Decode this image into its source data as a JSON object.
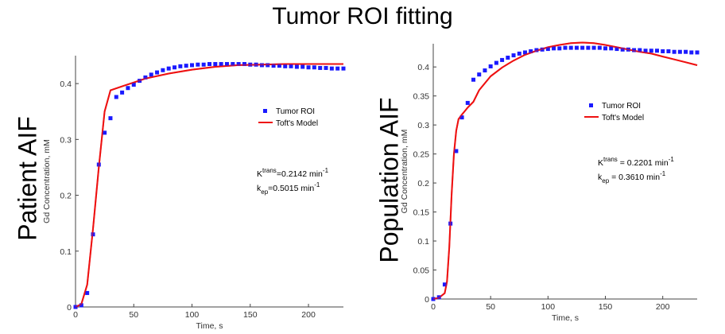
{
  "figure": {
    "title": "Tumor ROI fitting",
    "row_labels": [
      "Patient AIF",
      "Population AIF"
    ]
  },
  "chart_data": [
    {
      "type": "scatter+line",
      "title": "",
      "xlabel": "Time, s",
      "ylabel": "Gd Concentration, mM",
      "xlim": [
        0,
        230
      ],
      "ylim": [
        0,
        0.45
      ],
      "xticks": [
        "0",
        "50",
        "100",
        "150",
        "200"
      ],
      "xtick_values": [
        0,
        50,
        100,
        150,
        200
      ],
      "yticks": [
        "0",
        "0.1",
        "0.2",
        "0.3",
        "0.4"
      ],
      "ytick_values": [
        0,
        0.1,
        0.2,
        0.3,
        0.4
      ],
      "legend": {
        "position": "center-right",
        "entries": [
          "Tumor ROI",
          "Toft's Model"
        ]
      },
      "annotation": {
        "k_label": "K",
        "k_sup": "trans",
        "k_value": "=0.2142 min",
        "k_exp": "-1",
        "kep_label": "k",
        "kep_sub": "ep",
        "kep_value": "=0.5015 min",
        "kep_exp": "-1"
      },
      "series": [
        {
          "name": "Tumor ROI",
          "kind": "marker",
          "color": "#1a1aff",
          "x": [
            0,
            5,
            10,
            15,
            20,
            25,
            30,
            35,
            40,
            45,
            50,
            55,
            60,
            65,
            70,
            75,
            80,
            85,
            90,
            95,
            100,
            105,
            110,
            115,
            120,
            125,
            130,
            135,
            140,
            145,
            150,
            155,
            160,
            165,
            170,
            175,
            180,
            185,
            190,
            195,
            200,
            205,
            210,
            215,
            220,
            225,
            230
          ],
          "y": [
            0,
            0.003,
            0.025,
            0.13,
            0.255,
            0.312,
            0.338,
            0.376,
            0.384,
            0.392,
            0.398,
            0.405,
            0.411,
            0.416,
            0.42,
            0.424,
            0.427,
            0.429,
            0.431,
            0.432,
            0.433,
            0.434,
            0.434,
            0.435,
            0.435,
            0.435,
            0.435,
            0.435,
            0.435,
            0.435,
            0.434,
            0.434,
            0.433,
            0.433,
            0.432,
            0.432,
            0.431,
            0.431,
            0.43,
            0.43,
            0.429,
            0.429,
            0.428,
            0.428,
            0.427,
            0.427,
            0.427
          ]
        },
        {
          "name": "Toft's Model",
          "kind": "line",
          "color": "#ee1111",
          "x": [
            0,
            5,
            10,
            15,
            20,
            25,
            30,
            40,
            50,
            60,
            80,
            100,
            120,
            140,
            160,
            180,
            200,
            220,
            230
          ],
          "y": [
            0,
            0.005,
            0.04,
            0.14,
            0.25,
            0.35,
            0.388,
            0.395,
            0.402,
            0.409,
            0.418,
            0.425,
            0.43,
            0.433,
            0.434,
            0.435,
            0.435,
            0.435,
            0.435
          ]
        }
      ]
    },
    {
      "type": "scatter+line",
      "title": "",
      "xlabel": "Time, s",
      "ylabel": "Gd Concentration, mM",
      "xlim": [
        0,
        230
      ],
      "ylim": [
        0,
        0.44
      ],
      "xticks": [
        "0",
        "50",
        "100",
        "150",
        "200"
      ],
      "xtick_values": [
        0,
        50,
        100,
        150,
        200
      ],
      "yticks": [
        "0",
        "0.05",
        "0.1",
        "0.15",
        "0.2",
        "0.25",
        "0.3",
        "0.35",
        "0.4"
      ],
      "ytick_values": [
        0,
        0.05,
        0.1,
        0.15,
        0.2,
        0.25,
        0.3,
        0.35,
        0.4
      ],
      "legend": {
        "position": "center-right",
        "entries": [
          "Tumor ROI",
          "Toft's Model"
        ]
      },
      "annotation": {
        "k_label": "K",
        "k_sup": "trans",
        "k_value": " = 0.2201 min",
        "k_exp": "-1",
        "kep_label": "k",
        "kep_sub": "ep",
        "kep_value": " = 0.3610 min",
        "kep_exp": "-1"
      },
      "series": [
        {
          "name": "Tumor ROI",
          "kind": "marker",
          "color": "#1a1aff",
          "x": [
            0,
            5,
            10,
            15,
            20,
            25,
            30,
            35,
            40,
            45,
            50,
            55,
            60,
            65,
            70,
            75,
            80,
            85,
            90,
            95,
            100,
            105,
            110,
            115,
            120,
            125,
            130,
            135,
            140,
            145,
            150,
            155,
            160,
            165,
            170,
            175,
            180,
            185,
            190,
            195,
            200,
            205,
            210,
            215,
            220,
            225,
            230
          ],
          "y": [
            0,
            0.003,
            0.025,
            0.13,
            0.255,
            0.313,
            0.338,
            0.378,
            0.387,
            0.394,
            0.401,
            0.407,
            0.412,
            0.416,
            0.42,
            0.423,
            0.425,
            0.427,
            0.429,
            0.43,
            0.431,
            0.432,
            0.432,
            0.433,
            0.433,
            0.433,
            0.433,
            0.433,
            0.433,
            0.433,
            0.432,
            0.432,
            0.431,
            0.43,
            0.43,
            0.429,
            0.429,
            0.428,
            0.428,
            0.428,
            0.427,
            0.427,
            0.426,
            0.426,
            0.426,
            0.425,
            0.425
          ]
        },
        {
          "name": "Toft's Model",
          "kind": "line",
          "color": "#ee1111",
          "x": [
            0,
            5,
            10,
            12,
            14,
            16,
            18,
            20,
            22,
            25,
            28,
            30,
            35,
            40,
            50,
            60,
            70,
            80,
            90,
            100,
            110,
            120,
            130,
            140,
            150,
            160,
            170,
            180,
            190,
            200,
            210,
            220,
            230
          ],
          "y": [
            0,
            0.002,
            0.01,
            0.03,
            0.09,
            0.18,
            0.25,
            0.29,
            0.31,
            0.318,
            0.325,
            0.33,
            0.34,
            0.36,
            0.384,
            0.399,
            0.411,
            0.421,
            0.428,
            0.434,
            0.438,
            0.441,
            0.442,
            0.441,
            0.438,
            0.434,
            0.43,
            0.426,
            0.423,
            0.418,
            0.413,
            0.408,
            0.403
          ]
        }
      ]
    }
  ]
}
